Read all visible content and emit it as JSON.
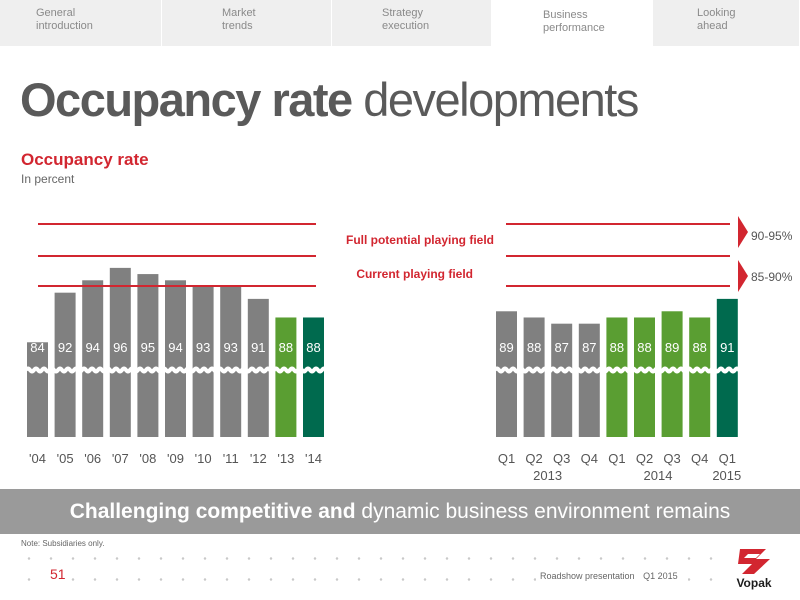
{
  "tabs": [
    {
      "line1": "General",
      "line2": "introduction"
    },
    {
      "line1": "Market",
      "line2": "trends"
    },
    {
      "line1": "Strategy",
      "line2": "execution"
    },
    {
      "line1": "Business",
      "line2": "performance"
    },
    {
      "line1": "Looking",
      "line2": "ahead"
    }
  ],
  "header": {
    "title_bold": "Occupancy rate",
    "title_light": " developments"
  },
  "chart_data": {
    "type": "bar",
    "title": "Occupancy rate",
    "subtitle": "In percent",
    "annual": {
      "categories": [
        "'04",
        "'05",
        "'06",
        "'07",
        "'08",
        "'09",
        "'10",
        "'11",
        "'12",
        "'13",
        "'14"
      ],
      "values": [
        84,
        92,
        94,
        96,
        95,
        94,
        93,
        93,
        91,
        88,
        88
      ],
      "colors": [
        "#808080",
        "#808080",
        "#808080",
        "#808080",
        "#808080",
        "#808080",
        "#808080",
        "#808080",
        "#808080",
        "#5a9e32",
        "#006a4e"
      ]
    },
    "quarterly": {
      "categories": [
        "Q1",
        "Q2",
        "Q3",
        "Q4",
        "Q1",
        "Q2",
        "Q3",
        "Q4",
        "Q1"
      ],
      "years": [
        "2013",
        "2014",
        "2015"
      ],
      "values": [
        89,
        88,
        87,
        87,
        88,
        88,
        89,
        88,
        91
      ],
      "colors": [
        "#808080",
        "#808080",
        "#808080",
        "#808080",
        "#5a9e32",
        "#5a9e32",
        "#5a9e32",
        "#5a9e32",
        "#006a4e"
      ]
    },
    "reference_lines": [
      {
        "label": "Full potential playing field",
        "range": "90-95%"
      },
      {
        "label": "Current playing field",
        "range": "85-90%"
      }
    ],
    "axis_break": true
  },
  "colors": {
    "accent_red": "#d22630",
    "bar_grey": "#808080",
    "bar_green": "#5a9e32",
    "bar_dark_green": "#006a4e",
    "banner": "#9a9a9a"
  },
  "banner": {
    "bold": "Challenging competitive and",
    "light": " dynamic business environment remains"
  },
  "footer": {
    "note": "Note: Subsidiaries only.",
    "page_number": "51",
    "presentation": "Roadshow presentation",
    "period": "Q1 2015",
    "logo_text": "Vopak"
  }
}
